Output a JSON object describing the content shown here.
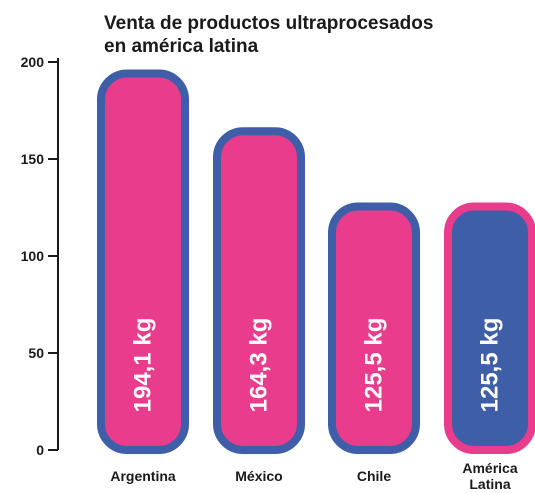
{
  "chart_data": {
    "type": "bar",
    "title": [
      "Venta de productos ultraprocesados",
      "en américa latina"
    ],
    "categories": [
      "Argentina",
      "México",
      "Chile",
      "América Latina"
    ],
    "values": [
      194.1,
      164.3,
      125.5,
      125.5
    ],
    "data_labels": [
      "194,1 kg",
      "164,3 kg",
      "125,5 kg",
      "125,5 kg"
    ],
    "y_ticks": [
      0,
      50,
      100,
      150,
      200
    ],
    "ylim": [
      0,
      200
    ],
    "colors": {
      "bar_fill": "#e93c8c",
      "bar_border": "#3f5ea8",
      "highlight_fill": "#3f5ea8",
      "highlight_border": "#e93c8c",
      "axis": "#1a1a1a"
    },
    "highlight_index": 3
  }
}
